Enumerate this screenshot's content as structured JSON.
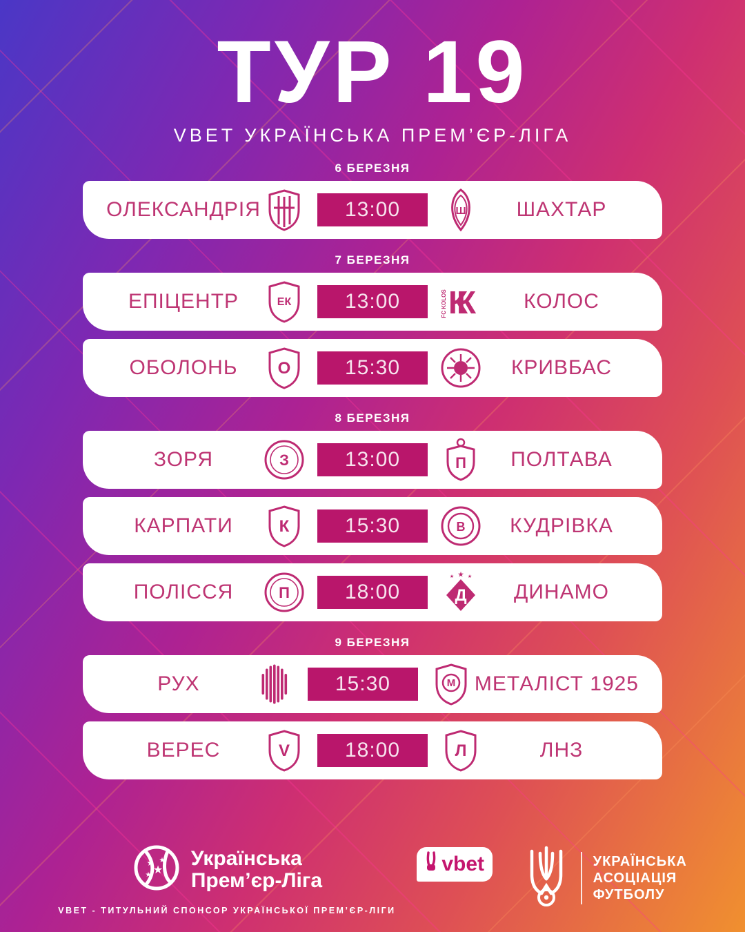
{
  "header": {
    "title": "ТУР 19",
    "subtitle": "VBET УКРАЇНСЬКА ПРЕМ’ЄР-ЛІГА"
  },
  "colors": {
    "accent_magenta": "#b9166b",
    "team_text": "#be3573",
    "crest_stroke": "#be2a72",
    "card_background": "#ffffff",
    "gradient_top_left": "#4a37c6",
    "gradient_bottom_right": "#f0902f"
  },
  "sections": [
    {
      "date": "6 БЕРЕЗНЯ",
      "matches": [
        {
          "home": {
            "name": "ОЛЕКСАНДРІЯ",
            "icon": "oleksandriia-crest",
            "shape": "shield-striped",
            "letter": ""
          },
          "time": "13:00",
          "away": {
            "name": "ШАХТАР",
            "icon": "shakhtar-crest",
            "shape": "vesica",
            "letter": "Ш"
          }
        }
      ]
    },
    {
      "date": "7 БЕРЕЗНЯ",
      "matches": [
        {
          "home": {
            "name": "ЕПІЦЕНТР",
            "icon": "epitsentr-crest",
            "shape": "shield",
            "letter": "ЕК"
          },
          "time": "13:00",
          "away": {
            "name": "КОЛОС",
            "icon": "kolos-crest",
            "shape": "letter-k",
            "letter": "К"
          }
        },
        {
          "home": {
            "name": "ОБОЛОНЬ",
            "icon": "obolon-crest",
            "shape": "shield",
            "letter": "О"
          },
          "time": "15:30",
          "away": {
            "name": "КРИВБАС",
            "icon": "kryvbas-crest",
            "shape": "circle-ball",
            "letter": ""
          }
        }
      ]
    },
    {
      "date": "8 БЕРЕЗНЯ",
      "matches": [
        {
          "home": {
            "name": "ЗОРЯ",
            "icon": "zoria-crest",
            "shape": "circle",
            "letter": "З"
          },
          "time": "13:00",
          "away": {
            "name": "ПОЛТАВА",
            "icon": "poltava-crest",
            "shape": "shield-top-ball",
            "letter": "П"
          }
        },
        {
          "home": {
            "name": "КАРПАТИ",
            "icon": "karpaty-crest",
            "shape": "shield",
            "letter": "К"
          },
          "time": "15:30",
          "away": {
            "name": "КУДРІВКА",
            "icon": "kudrivka-crest",
            "shape": "ring",
            "letter": "В"
          }
        },
        {
          "home": {
            "name": "ПОЛІССЯ",
            "icon": "polissia-crest",
            "shape": "circle",
            "letter": "П"
          },
          "time": "18:00",
          "away": {
            "name": "ДИНАМО",
            "icon": "dynamo-crest",
            "shape": "diamond-stars",
            "letter": "Д"
          }
        }
      ]
    },
    {
      "date": "9 БЕРЕЗНЯ",
      "matches": [
        {
          "home": {
            "name": "РУХ",
            "icon": "rukh-crest",
            "shape": "vlines",
            "letter": ""
          },
          "time": "15:30",
          "away": {
            "name": "МЕТАЛІСТ 1925",
            "icon": "metalist1925-crest",
            "shape": "shield-circle",
            "letter": "М"
          }
        },
        {
          "home": {
            "name": "ВЕРЕС",
            "icon": "veres-crest",
            "shape": "shield",
            "letter": "V"
          },
          "time": "18:00",
          "away": {
            "name": "lnz-crest-label",
            "icon": "lnz-crest",
            "shape": "shield",
            "letter": "Л"
          }
        }
      ]
    }
  ],
  "footer": {
    "upl": {
      "line1": "Українська",
      "line2": "Прем’єр-Ліга"
    },
    "sponsor_note": "VBET - ТИТУЛЬНИЙ СПОНСОР УКРАЇНСЬКОЇ ПРЕМ’ЄР-ЛІГИ",
    "vbet_label": "vbet",
    "uaf": {
      "line1": "УКРАЇНСЬКА",
      "line2": "АСОЦІАЦІЯ",
      "line3": "ФУТБОЛУ"
    }
  }
}
